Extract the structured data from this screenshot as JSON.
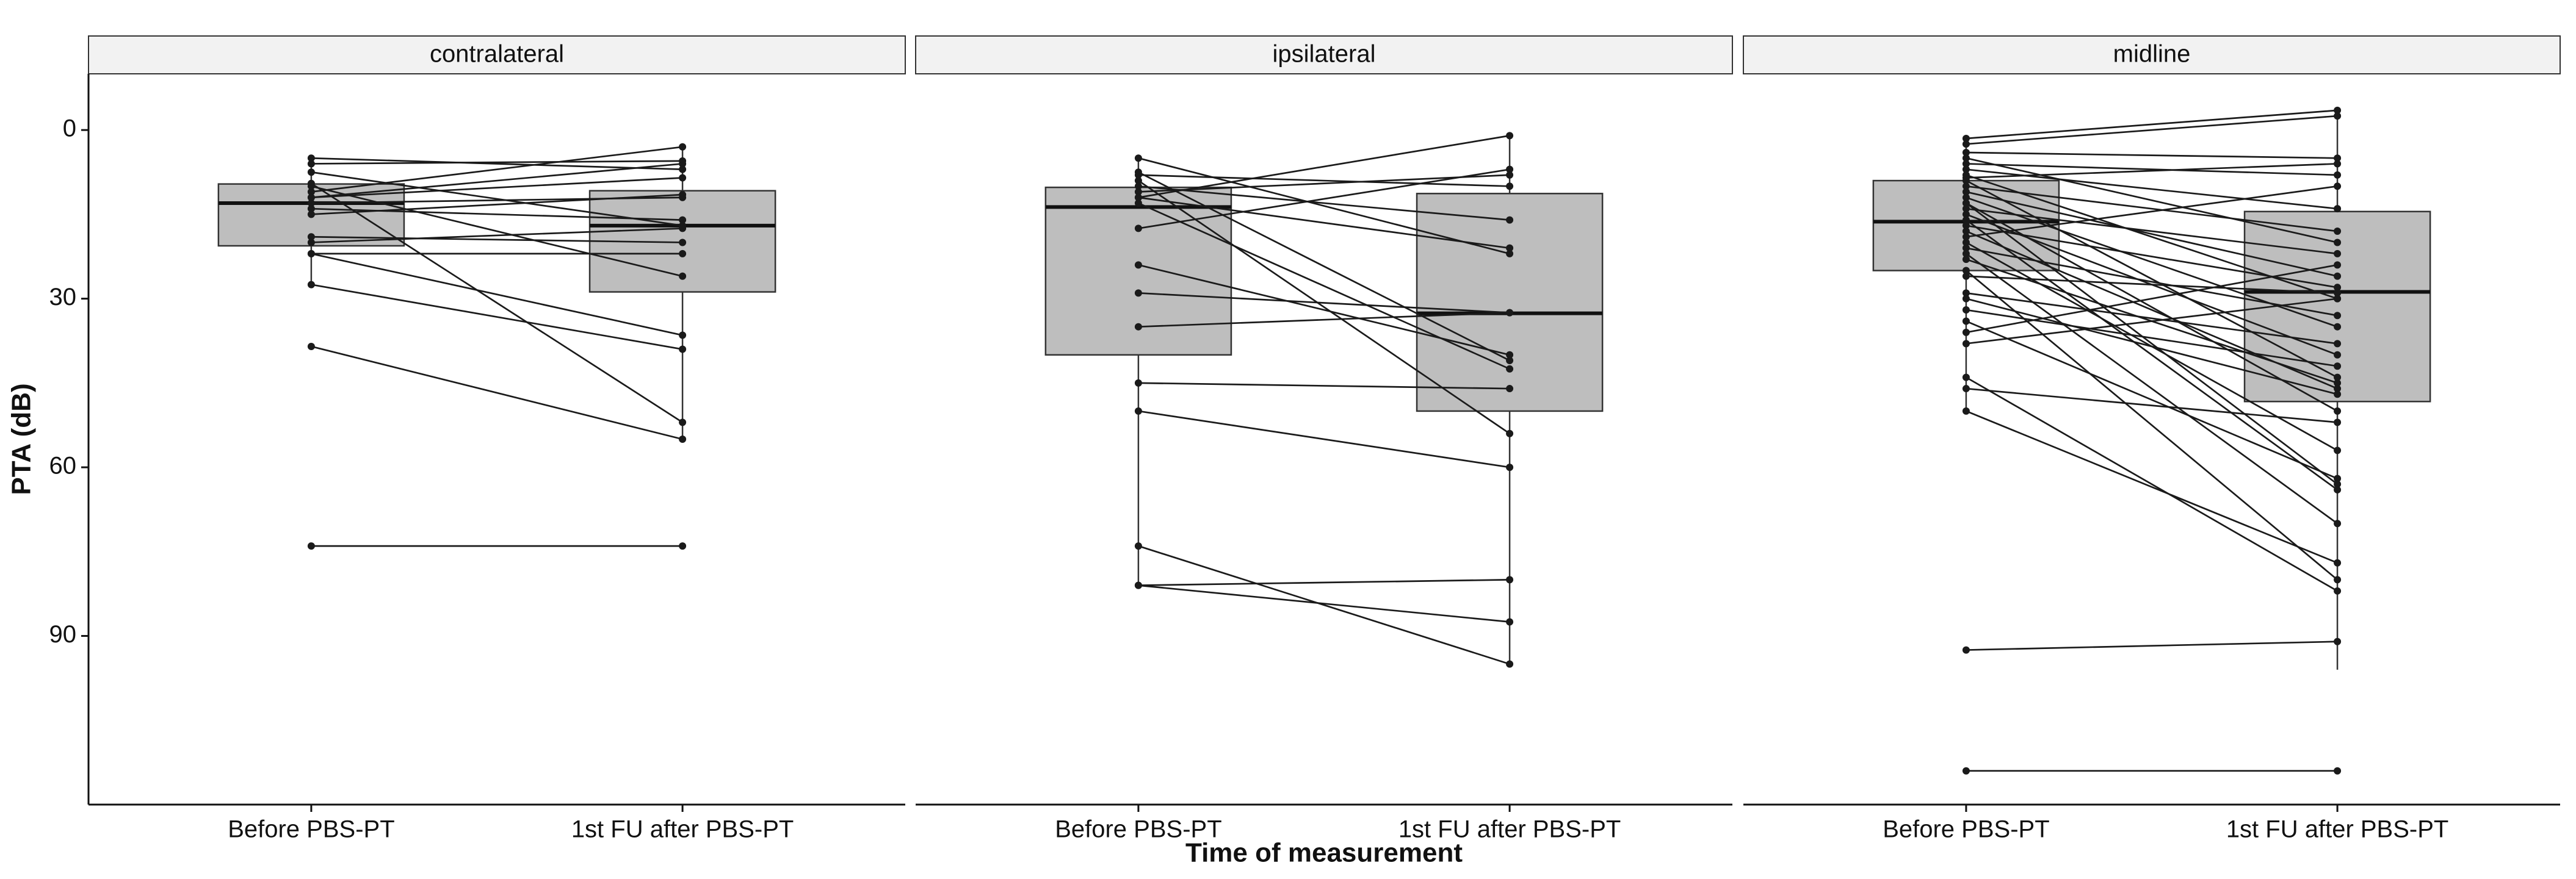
{
  "chart_data": {
    "type": "paired-boxplot",
    "ylabel": "PTA (dB)",
    "xlabel": "Time of measurement",
    "categories": [
      "Before PBS-PT",
      "1st FU after PBS-PT"
    ],
    "ylim": [
      -10,
      120
    ],
    "reverse_y": true,
    "yticks": [
      0,
      30,
      60,
      90
    ],
    "box_color": "#bebebe",
    "line_color": "#1a1a1a",
    "panels": [
      {
        "title": "contralateral",
        "boxes": [
          {
            "whislo": 5,
            "q1": 9.6,
            "med": 13,
            "q3": 20.6,
            "whishi": 27.5
          },
          {
            "whislo": 3,
            "q1": 10.8,
            "med": 17,
            "q3": 28.8,
            "whishi": 55
          }
        ],
        "before": [
          5,
          6,
          7.5,
          9.5,
          11,
          12,
          13,
          14,
          15,
          19,
          20,
          22,
          22,
          27.5,
          38.5,
          74,
          12,
          10
        ],
        "after": [
          7,
          5.5,
          17,
          52,
          3,
          6,
          12,
          16,
          11.5,
          20,
          17.5,
          22,
          36.5,
          39,
          55,
          74,
          8.5,
          26
        ]
      },
      {
        "title": "ipsilateral",
        "boxes": [
          {
            "whislo": 5,
            "q1": 10.2,
            "med": 13.7,
            "q3": 40,
            "whishi": 81
          },
          {
            "whislo": 1,
            "q1": 11.3,
            "med": 32.6,
            "q3": 50,
            "whishi": 95
          }
        ],
        "before": [
          5,
          7.5,
          9,
          11,
          12,
          13,
          17.5,
          24,
          29,
          35,
          45,
          50,
          74,
          81,
          81,
          10,
          12,
          8
        ],
        "after": [
          22,
          41,
          54,
          8,
          1,
          42.5,
          7,
          40,
          32.5,
          32.5,
          46,
          60,
          95,
          80,
          87.5,
          16,
          21,
          10
        ]
      },
      {
        "title": "midline",
        "boxes": [
          {
            "whislo": 1.5,
            "q1": 9,
            "med": 16.3,
            "q3": 25,
            "whishi": 50
          },
          {
            "whislo": -3.5,
            "q1": 14.5,
            "med": 28.8,
            "q3": 48.3,
            "whishi": 96
          }
        ],
        "before": [
          1.5,
          2.5,
          4,
          5,
          6,
          7,
          8,
          8.5,
          9,
          10,
          11,
          12,
          13,
          13,
          14,
          15,
          16,
          17,
          18,
          19,
          20,
          21,
          22,
          23,
          25,
          26,
          29,
          30,
          32,
          34,
          36,
          38,
          44,
          46,
          50,
          92.5,
          114
        ],
        "after": [
          -3.5,
          -2.5,
          5,
          20,
          8,
          14,
          30,
          6,
          44,
          18,
          26,
          35,
          50,
          63,
          22,
          40,
          64,
          28,
          46,
          10,
          57,
          33,
          70,
          45,
          80,
          29,
          38,
          47,
          42,
          62,
          24,
          30,
          82,
          52,
          77,
          91,
          114
        ]
      }
    ]
  }
}
